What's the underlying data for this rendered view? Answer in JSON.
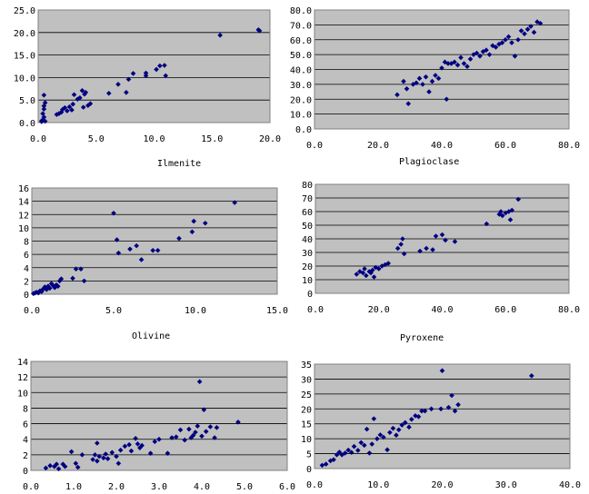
{
  "colors": {
    "plot_bg": "#c0c0c0",
    "grid": "#000000",
    "marker": "#000080",
    "page_bg": "#ffffff"
  },
  "chart_data": [
    {
      "type": "scatter",
      "title": "",
      "xlim": [
        0,
        20
      ],
      "ylim": [
        0,
        25
      ],
      "xticks": [
        "0.0",
        "5.0",
        "10.0",
        "15.0",
        "20.0"
      ],
      "yticks": [
        "0.0",
        "5.0",
        "10.0",
        "15.0",
        "20.0",
        "25.0"
      ],
      "grid": true,
      "points": [
        [
          0.3,
          0.2
        ],
        [
          0.4,
          0.6
        ],
        [
          0.5,
          1.2
        ],
        [
          0.4,
          2.0
        ],
        [
          0.5,
          3.0
        ],
        [
          0.5,
          3.7
        ],
        [
          0.6,
          4.4
        ],
        [
          0.5,
          6.1
        ],
        [
          0.3,
          0.4
        ],
        [
          0.6,
          0.3
        ],
        [
          1.6,
          1.8
        ],
        [
          1.8,
          2.0
        ],
        [
          2.0,
          2.3
        ],
        [
          2.1,
          2.9
        ],
        [
          2.3,
          3.3
        ],
        [
          2.5,
          2.6
        ],
        [
          2.7,
          3.5
        ],
        [
          2.9,
          2.8
        ],
        [
          3.0,
          4.1
        ],
        [
          3.1,
          6.2
        ],
        [
          3.4,
          5.2
        ],
        [
          3.6,
          5.5
        ],
        [
          3.8,
          7.1
        ],
        [
          3.9,
          3.4
        ],
        [
          4.0,
          6.3
        ],
        [
          4.1,
          6.7
        ],
        [
          4.3,
          3.8
        ],
        [
          4.5,
          4.2
        ],
        [
          6.1,
          6.5
        ],
        [
          6.9,
          8.5
        ],
        [
          7.6,
          6.7
        ],
        [
          7.8,
          9.6
        ],
        [
          8.2,
          10.9
        ],
        [
          9.3,
          10.4
        ],
        [
          9.3,
          11.0
        ],
        [
          10.2,
          11.8
        ],
        [
          10.5,
          12.6
        ],
        [
          10.9,
          12.7
        ],
        [
          11.0,
          10.4
        ],
        [
          15.7,
          19.4
        ],
        [
          19.0,
          20.6
        ],
        [
          19.1,
          20.4
        ]
      ]
    },
    {
      "type": "scatter",
      "title": "",
      "xlim": [
        0,
        80
      ],
      "ylim": [
        0,
        80
      ],
      "xticks": [
        "0.0",
        "20.0",
        "40.0",
        "60.0",
        "80.0"
      ],
      "yticks": [
        "0.0",
        "10.0",
        "20.0",
        "30.0",
        "40.0",
        "50.0",
        "60.0",
        "70.0",
        "80.0"
      ],
      "grid": true,
      "points": [
        [
          26,
          23
        ],
        [
          28,
          32
        ],
        [
          29,
          27
        ],
        [
          29.5,
          17
        ],
        [
          31,
          30
        ],
        [
          32,
          31
        ],
        [
          33,
          34
        ],
        [
          34,
          30
        ],
        [
          35,
          35
        ],
        [
          36,
          25
        ],
        [
          37,
          32
        ],
        [
          38,
          36
        ],
        [
          39,
          34
        ],
        [
          40,
          41
        ],
        [
          41,
          45
        ],
        [
          41.5,
          20
        ],
        [
          42,
          44
        ],
        [
          43,
          44
        ],
        [
          44,
          45
        ],
        [
          45,
          43
        ],
        [
          46,
          48
        ],
        [
          47,
          44
        ],
        [
          48,
          42
        ],
        [
          49,
          47
        ],
        [
          50,
          50
        ],
        [
          51,
          51
        ],
        [
          52,
          49
        ],
        [
          53,
          52
        ],
        [
          54,
          53
        ],
        [
          55,
          50
        ],
        [
          56,
          56
        ],
        [
          57,
          55
        ],
        [
          58,
          57
        ],
        [
          59,
          58
        ],
        [
          60,
          60
        ],
        [
          61,
          62
        ],
        [
          62,
          58
        ],
        [
          63,
          49
        ],
        [
          64,
          60
        ],
        [
          65,
          66
        ],
        [
          66,
          64
        ],
        [
          67,
          67
        ],
        [
          68,
          69
        ],
        [
          69,
          65
        ],
        [
          70,
          72
        ],
        [
          71,
          71
        ]
      ]
    },
    {
      "type": "scatter",
      "title": "Ilmenite",
      "xlim": [
        0,
        15
      ],
      "ylim": [
        0,
        16
      ],
      "xticks": [
        "0.0",
        "5.0",
        "10.0",
        "15.0"
      ],
      "yticks": [
        "0",
        "2",
        "4",
        "6",
        "8",
        "10",
        "12",
        "14",
        "16"
      ],
      "grid": true,
      "points": [
        [
          0.1,
          0.1
        ],
        [
          0.2,
          0.2
        ],
        [
          0.3,
          0.3
        ],
        [
          0.4,
          0.2
        ],
        [
          0.5,
          0.5
        ],
        [
          0.6,
          0.4
        ],
        [
          0.7,
          0.8
        ],
        [
          0.8,
          1.1
        ],
        [
          0.9,
          0.7
        ],
        [
          1.0,
          1.2
        ],
        [
          1.1,
          0.9
        ],
        [
          1.2,
          1.6
        ],
        [
          1.3,
          1.3
        ],
        [
          1.4,
          1.0
        ],
        [
          1.5,
          1.4
        ],
        [
          1.6,
          1.2
        ],
        [
          1.7,
          2.0
        ],
        [
          1.8,
          2.3
        ],
        [
          2.5,
          2.4
        ],
        [
          2.7,
          3.8
        ],
        [
          3.0,
          3.8
        ],
        [
          3.2,
          2.0
        ],
        [
          5.0,
          12.2
        ],
        [
          5.2,
          8.2
        ],
        [
          5.3,
          6.2
        ],
        [
          6.0,
          6.8
        ],
        [
          6.4,
          7.3
        ],
        [
          6.7,
          5.2
        ],
        [
          7.4,
          6.6
        ],
        [
          7.7,
          6.6
        ],
        [
          9.0,
          8.4
        ],
        [
          9.8,
          9.4
        ],
        [
          9.9,
          11.0
        ],
        [
          10.6,
          10.7
        ],
        [
          12.4,
          13.8
        ]
      ]
    },
    {
      "type": "scatter",
      "title": "Plagioclase",
      "xlim": [
        0,
        80
      ],
      "ylim": [
        0,
        80
      ],
      "xticks": [
        "0.0",
        "20.0",
        "40.0",
        "60.0",
        "80.0"
      ],
      "yticks": [
        "0",
        "10",
        "20",
        "30",
        "40",
        "50",
        "60",
        "70",
        "80"
      ],
      "grid": true,
      "points": [
        [
          13,
          14
        ],
        [
          14,
          16
        ],
        [
          15,
          15
        ],
        [
          15.5,
          18
        ],
        [
          16,
          13
        ],
        [
          17,
          16
        ],
        [
          17.5,
          15
        ],
        [
          18,
          17
        ],
        [
          18.5,
          12
        ],
        [
          19,
          19
        ],
        [
          20,
          18
        ],
        [
          21,
          20
        ],
        [
          22,
          21
        ],
        [
          23,
          22
        ],
        [
          26,
          33
        ],
        [
          27,
          36
        ],
        [
          27.5,
          40
        ],
        [
          28,
          29
        ],
        [
          33,
          31
        ],
        [
          35,
          33
        ],
        [
          37,
          32
        ],
        [
          38,
          42
        ],
        [
          40,
          43
        ],
        [
          41,
          39
        ],
        [
          44,
          38
        ],
        [
          54,
          51
        ],
        [
          58,
          58
        ],
        [
          58.5,
          60
        ],
        [
          59,
          57
        ],
        [
          60,
          59
        ],
        [
          61,
          60
        ],
        [
          61.5,
          54
        ],
        [
          62,
          61
        ],
        [
          64,
          69
        ]
      ]
    },
    {
      "type": "scatter",
      "title": "Olivine",
      "xlim": [
        0,
        6
      ],
      "ylim": [
        0,
        14
      ],
      "xticks": [
        "0.0",
        "1.0",
        "2.0",
        "3.0",
        "4.0",
        "5.0",
        "6.0"
      ],
      "yticks": [
        "0",
        "2",
        "4",
        "6",
        "8",
        "10",
        "12",
        "14"
      ],
      "grid": true,
      "points": [
        [
          0.35,
          0.3
        ],
        [
          0.45,
          0.6
        ],
        [
          0.55,
          0.5
        ],
        [
          0.6,
          0.8
        ],
        [
          0.65,
          0.2
        ],
        [
          0.75,
          0.8
        ],
        [
          0.8,
          0.5
        ],
        [
          0.95,
          2.4
        ],
        [
          1.05,
          0.9
        ],
        [
          1.1,
          0.4
        ],
        [
          1.2,
          2.0
        ],
        [
          1.45,
          1.4
        ],
        [
          1.5,
          2.0
        ],
        [
          1.55,
          3.5
        ],
        [
          1.55,
          1.2
        ],
        [
          1.6,
          1.8
        ],
        [
          1.7,
          1.6
        ],
        [
          1.75,
          2.1
        ],
        [
          1.8,
          1.5
        ],
        [
          1.9,
          2.3
        ],
        [
          2.0,
          1.8
        ],
        [
          2.05,
          0.9
        ],
        [
          2.1,
          2.6
        ],
        [
          2.2,
          3.1
        ],
        [
          2.3,
          3.3
        ],
        [
          2.35,
          2.5
        ],
        [
          2.45,
          4.1
        ],
        [
          2.5,
          3.4
        ],
        [
          2.55,
          2.9
        ],
        [
          2.6,
          3.2
        ],
        [
          2.8,
          2.2
        ],
        [
          2.9,
          3.7
        ],
        [
          3.0,
          4.0
        ],
        [
          3.2,
          2.2
        ],
        [
          3.3,
          4.2
        ],
        [
          3.4,
          4.3
        ],
        [
          3.5,
          5.2
        ],
        [
          3.6,
          3.9
        ],
        [
          3.7,
          5.3
        ],
        [
          3.75,
          4.2
        ],
        [
          3.8,
          4.5
        ],
        [
          3.85,
          4.9
        ],
        [
          3.9,
          5.7
        ],
        [
          3.95,
          11.4
        ],
        [
          4.0,
          4.4
        ],
        [
          4.05,
          7.8
        ],
        [
          4.1,
          5.0
        ],
        [
          4.2,
          5.6
        ],
        [
          4.35,
          5.5
        ],
        [
          4.3,
          4.2
        ],
        [
          4.85,
          6.2
        ]
      ]
    },
    {
      "type": "scatter",
      "title": "Pyroxene",
      "xlim": [
        0,
        40
      ],
      "ylim": [
        0,
        35
      ],
      "xticks": [
        "0.0",
        "10.0",
        "20.0",
        "30.0",
        "40.0"
      ],
      "yticks": [
        "0",
        "5",
        "10",
        "15",
        "20",
        "25",
        "30",
        "35"
      ],
      "grid": true,
      "points": [
        [
          1.2,
          1.1
        ],
        [
          1.8,
          1.5
        ],
        [
          2.5,
          2.6
        ],
        [
          3.0,
          3.0
        ],
        [
          3.5,
          4.6
        ],
        [
          3.9,
          5.5
        ],
        [
          4.3,
          4.6
        ],
        [
          4.8,
          5.2
        ],
        [
          5.3,
          6.2
        ],
        [
          5.8,
          5.4
        ],
        [
          6.2,
          7.4
        ],
        [
          6.8,
          6.1
        ],
        [
          7.3,
          8.7
        ],
        [
          7.8,
          7.8
        ],
        [
          8.2,
          13.2
        ],
        [
          8.6,
          5.2
        ],
        [
          9.0,
          8.2
        ],
        [
          9.3,
          16.7
        ],
        [
          9.8,
          10.0
        ],
        [
          10.3,
          11.3
        ],
        [
          10.8,
          10.5
        ],
        [
          11.4,
          6.3
        ],
        [
          11.8,
          12.1
        ],
        [
          12.3,
          13.5
        ],
        [
          12.8,
          11.2
        ],
        [
          13.2,
          13.0
        ],
        [
          13.7,
          14.6
        ],
        [
          14.2,
          15.4
        ],
        [
          14.8,
          13.9
        ],
        [
          15.2,
          16.5
        ],
        [
          15.8,
          17.7
        ],
        [
          16.3,
          17.4
        ],
        [
          16.8,
          19.3
        ],
        [
          17.3,
          19.3
        ],
        [
          18.3,
          20.0
        ],
        [
          19.8,
          20.0
        ],
        [
          20.0,
          32.8
        ],
        [
          21.0,
          20.5
        ],
        [
          21.5,
          24.5
        ],
        [
          22.0,
          19.3
        ],
        [
          22.5,
          21.4
        ],
        [
          34.0,
          31.1
        ]
      ]
    }
  ]
}
